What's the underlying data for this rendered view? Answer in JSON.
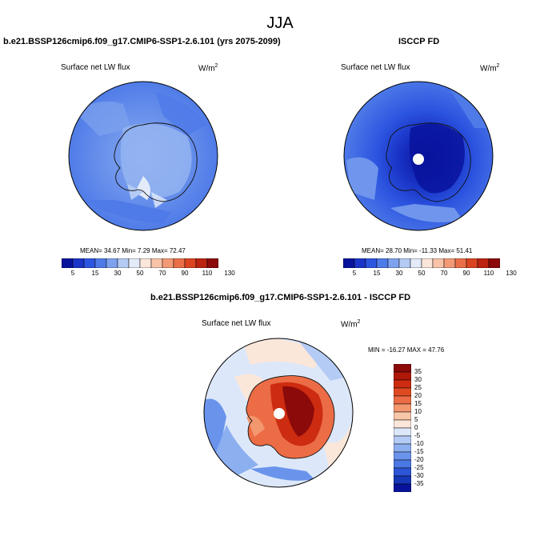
{
  "title": "JJA",
  "panels": [
    {
      "title": "b.e21.BSSP126cmip6.f09_g17.CMIP6-SSP1-2.6.101 (yrs 2075-2099)",
      "variable": "Surface net LW flux",
      "units": "W/m",
      "units_sup": "2",
      "stats": "MEAN=  34.67  Min=   7.29  Max=  72.47",
      "colorbar_labels": [
        "5",
        "15",
        "30",
        "50",
        "70",
        "90",
        "110",
        "130"
      ]
    },
    {
      "title": "ISCCP FD",
      "variable": "Surface net LW flux",
      "units": "W/m",
      "units_sup": "2",
      "stats": "MEAN=  28.70  Min= -11.33  Max=  51.41",
      "colorbar_labels": [
        "5",
        "15",
        "30",
        "50",
        "70",
        "90",
        "110",
        "130"
      ]
    },
    {
      "title": "b.e21.BSSP126cmip6.f09_g17.CMIP6-SSP1-2.6.101 - ISCCP FD",
      "variable": "Surface net LW flux",
      "units": "W/m",
      "units_sup": "2",
      "stats": "MIN = -16.27 MAX =  47.76",
      "colorbar_labels": [
        "35",
        "30",
        "25",
        "20",
        "15",
        "10",
        "5",
        "0",
        "-5",
        "-10",
        "-15",
        "-20",
        "-25",
        "-30",
        "-35"
      ]
    }
  ],
  "colors": {
    "abs_scale": [
      "#08139c",
      "#1a35c7",
      "#2c55e0",
      "#4f7be8",
      "#7fa2ee",
      "#b4cbf5",
      "#e3ebf9",
      "#fbe6da",
      "#f8c3a8",
      "#f29a76",
      "#ea6f48",
      "#db4420",
      "#bb2410",
      "#8c0a0a"
    ],
    "diff_scale": [
      "#8c0a0a",
      "#b0180a",
      "#cd2c10",
      "#e04a22",
      "#ec6c45",
      "#f3976f",
      "#f8c6a8",
      "#fbe6da",
      "#dce8fa",
      "#b4cbf5",
      "#8caff0",
      "#6a94ec",
      "#4a78e4",
      "#2c55d8",
      "#1638b8",
      "#08139c"
    ]
  }
}
